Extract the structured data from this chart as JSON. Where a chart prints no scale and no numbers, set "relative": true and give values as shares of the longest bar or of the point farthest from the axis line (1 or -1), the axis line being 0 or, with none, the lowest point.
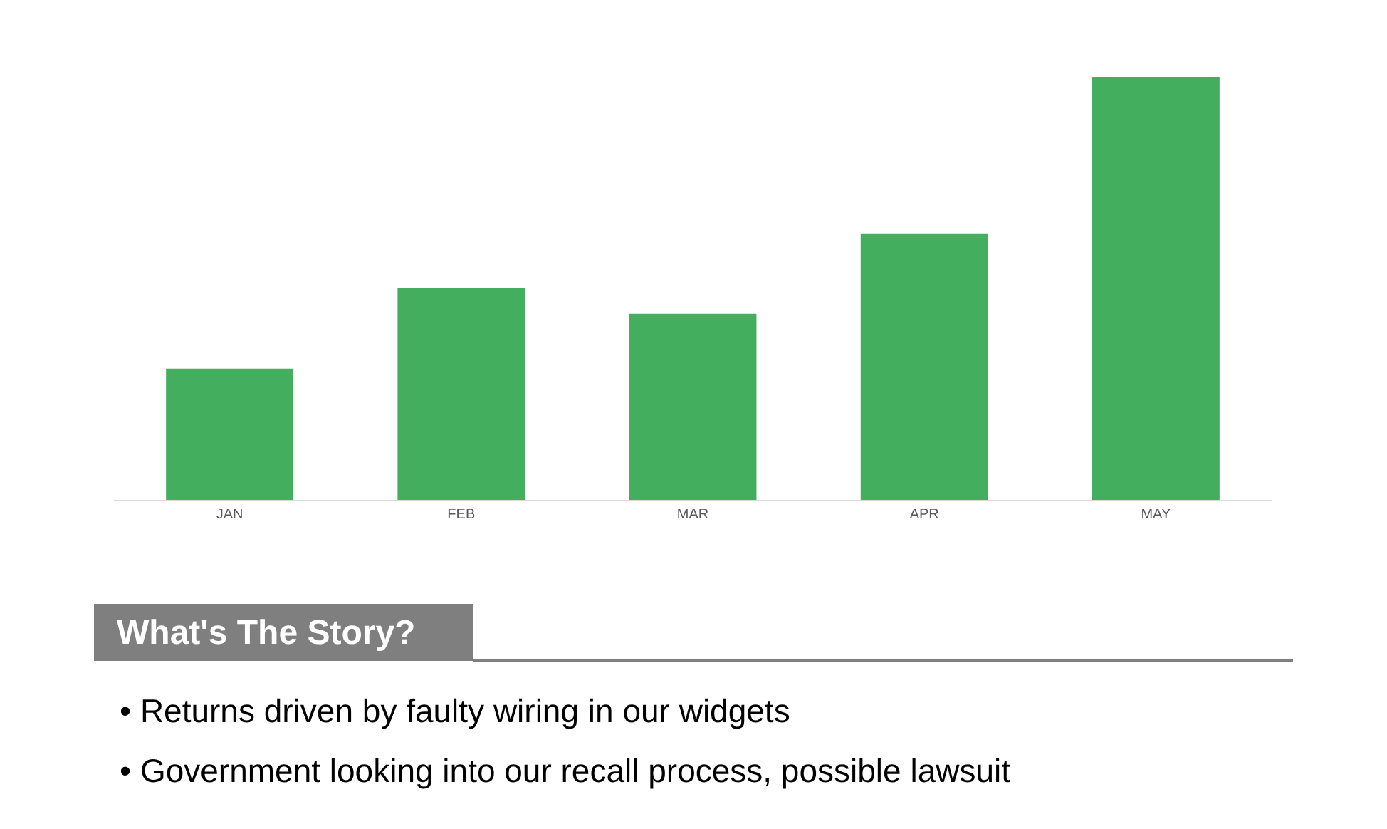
{
  "chart_data": {
    "type": "bar",
    "relative": true,
    "categories": [
      "JAN",
      "FEB",
      "MAR",
      "APR",
      "MAY"
    ],
    "values": [
      0.31,
      0.5,
      0.44,
      0.63,
      1
    ],
    "color": "#43ae5e",
    "annotations": [
      "What's The Story?",
      "• Returns driven by faulty wiring in our widgets",
      "• Government looking into our recall process, possible lawsuit"
    ]
  }
}
